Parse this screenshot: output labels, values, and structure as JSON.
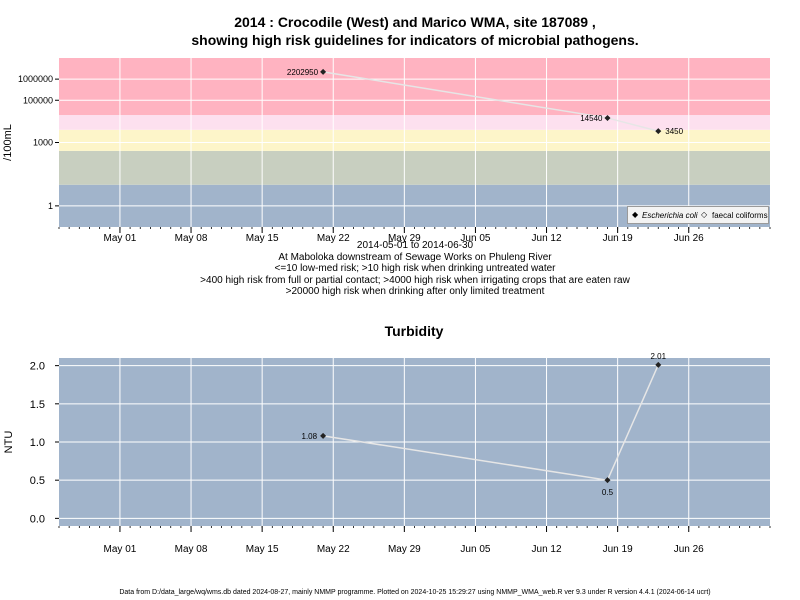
{
  "title_line1": "2014 : Crocodile (West) and Marico WMA, site 187089 ,",
  "title_line2": "showing high risk guidelines for indicators of microbial pathogens.",
  "caption": [
    "2014-05-01 to 2014-06-30",
    "At Maboloka downstream of Sewage Works on Phuleng River",
    "<=10 low-med risk; >10 high risk when drinking untreated water",
    ">400 high risk from full or partial contact; >4000 high risk when irrigating crops that are eaten raw",
    ">20000 high risk when drinking after only limited treatment"
  ],
  "footer": "Data from D:/data_large/wq/wms.db dated 2024-08-27, mainly NMMP programme. Plotted on 2024-10-25 15:29:27 using NMMP_WMA_web.R ver 9.3 under R version 4.4.1 (2024-06-14 ucrt)",
  "colors": {
    "band_high": "#ffb3c1",
    "band_pink_light": "#fde0ef",
    "band_yellow": "#fdf5c9",
    "band_green": "#c8cfc0",
    "band_blue": "#a1b4cb",
    "line": "#e6e6e6",
    "grid": "#ffffff"
  },
  "chart_data": [
    {
      "type": "line",
      "y_scale": "log",
      "ylabel": "/100mL",
      "xlim": [
        "2014-04-25",
        "2014-07-04"
      ],
      "x_ticks": [
        "May 01",
        "May 08",
        "May 15",
        "May 22",
        "May 29",
        "Jun 05",
        "Jun 12",
        "Jun 19",
        "Jun 26"
      ],
      "y_ticks": [
        "1",
        "1000",
        "100000",
        "1000000"
      ],
      "risk_bands": [
        {
          "from": 0.1,
          "to": 10
        },
        {
          "from": 10,
          "to": 400
        },
        {
          "from": 400,
          "to": 4000
        },
        {
          "from": 4000,
          "to": 20000
        },
        {
          "from": 20000,
          "to": 10000000
        }
      ],
      "legend": [
        "Escherichia coli",
        "faecal coliforms"
      ],
      "legend_position": "bottom-right",
      "series": [
        {
          "name": "Escherichia coli",
          "points": [
            {
              "x": "2014-05-21",
              "y": 2202950,
              "label": "2202950"
            },
            {
              "x": "2014-06-18",
              "y": 14540,
              "label": "14540"
            },
            {
              "x": "2014-06-23",
              "y": 3450,
              "label": "3450"
            }
          ]
        }
      ]
    },
    {
      "type": "line",
      "title": "Turbidity",
      "ylabel": "NTU",
      "ylim": [
        -0.1,
        2.1
      ],
      "xlim": [
        "2014-04-25",
        "2014-07-04"
      ],
      "x_ticks": [
        "May 01",
        "May 08",
        "May 15",
        "May 22",
        "May 29",
        "Jun 05",
        "Jun 12",
        "Jun 19",
        "Jun 26"
      ],
      "y_ticks": [
        "0.0",
        "0.5",
        "1.0",
        "1.5",
        "2.0"
      ],
      "series": [
        {
          "points": [
            {
              "x": "2014-05-21",
              "y": 1.08,
              "label": "1.08"
            },
            {
              "x": "2014-06-18",
              "y": 0.5,
              "label": "0.5"
            },
            {
              "x": "2014-06-23",
              "y": 2.01,
              "label": "2.01"
            }
          ]
        }
      ]
    }
  ]
}
